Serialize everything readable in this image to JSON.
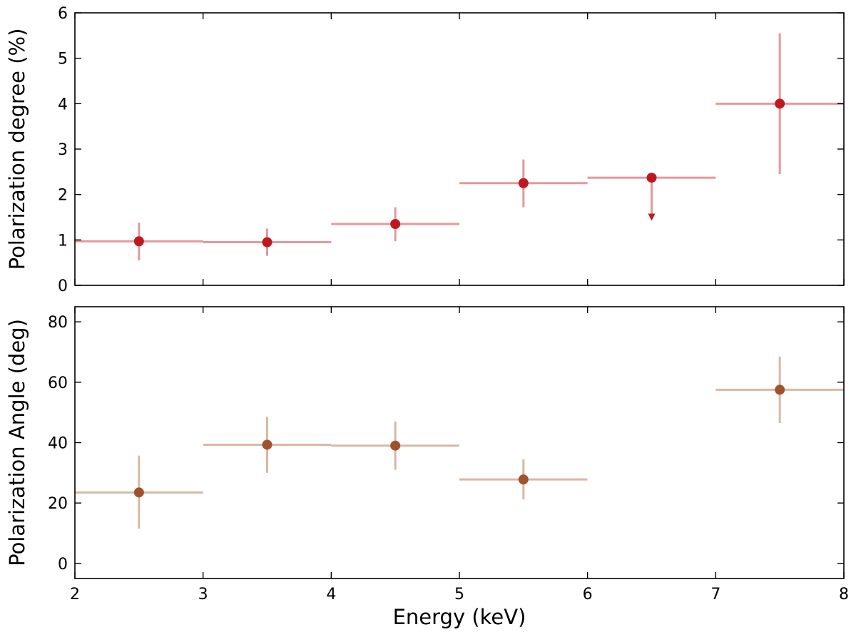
{
  "chart_data": [
    {
      "type": "scatter",
      "panel": "top",
      "title": "",
      "xlabel": "",
      "ylabel": "Polarization degree (%)",
      "xlim": [
        2,
        8
      ],
      "ylim": [
        0,
        6
      ],
      "xticks": [
        2,
        3,
        4,
        5,
        6,
        7,
        8
      ],
      "yticks": [
        0,
        1,
        2,
        3,
        4,
        5,
        6
      ],
      "show_x_tick_labels": false,
      "marker_color": "#c0181f",
      "errorbar_color": "#e3999c",
      "points": [
        {
          "x": 2.5,
          "y": 0.97,
          "xerr": 0.5,
          "yerr_low": 0.42,
          "yerr_high": 0.41
        },
        {
          "x": 3.5,
          "y": 0.95,
          "xerr": 0.5,
          "yerr_low": 0.3,
          "yerr_high": 0.3
        },
        {
          "x": 4.5,
          "y": 1.35,
          "xerr": 0.5,
          "yerr_low": 0.38,
          "yerr_high": 0.37
        },
        {
          "x": 5.5,
          "y": 2.25,
          "xerr": 0.5,
          "yerr_low": 0.53,
          "yerr_high": 0.52
        },
        {
          "x": 6.5,
          "y": 2.37,
          "xerr": 0.5,
          "upper_limit": true,
          "arrow_to": 1.5
        },
        {
          "x": 7.5,
          "y": 4.0,
          "xerr": 0.5,
          "yerr_low": 1.55,
          "yerr_high": 1.55
        }
      ]
    },
    {
      "type": "scatter",
      "panel": "bottom",
      "title": "",
      "xlabel": "Energy (keV)",
      "ylabel": "Polarization Angle (deg)",
      "xlim": [
        2,
        8
      ],
      "ylim": [
        -5,
        85
      ],
      "xticks": [
        2,
        3,
        4,
        5,
        6,
        7,
        8
      ],
      "yticks": [
        0,
        20,
        40,
        60,
        80
      ],
      "show_x_tick_labels": true,
      "marker_color": "#a0522d",
      "errorbar_color": "#d7b8a5",
      "points": [
        {
          "x": 2.5,
          "y": 23.5,
          "xerr": 0.5,
          "yerr_low": 12.0,
          "yerr_high": 12.2
        },
        {
          "x": 3.5,
          "y": 39.3,
          "xerr": 0.5,
          "yerr_low": 9.3,
          "yerr_high": 9.2
        },
        {
          "x": 4.5,
          "y": 39.0,
          "xerr": 0.5,
          "yerr_low": 8.0,
          "yerr_high": 8.0
        },
        {
          "x": 5.5,
          "y": 27.8,
          "xerr": 0.5,
          "yerr_low": 6.6,
          "yerr_high": 6.7
        },
        {
          "x": 7.5,
          "y": 57.5,
          "xerr": 0.5,
          "yerr_low": 11.0,
          "yerr_high": 11.0
        }
      ]
    }
  ]
}
